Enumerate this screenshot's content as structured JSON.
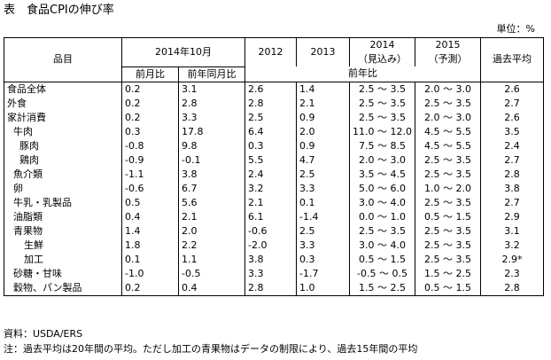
{
  "title": "表　食品CPIの伸び率",
  "unit": "単位：%",
  "headers": {
    "item": "品目",
    "oct2014": "2014年10月",
    "y2012": "2012",
    "y2013": "2013",
    "y2014_line1": "2014",
    "y2014_line2": "（見込み）",
    "y2015_line1": "2015",
    "y2015_line2": "（予測）",
    "avg": "過去平均",
    "mom": "前月比",
    "yoy": "前年同月比",
    "prev_year": "前年比"
  },
  "rows": [
    {
      "name": "食品全体",
      "mom": "0.2",
      "yoy": "3.1",
      "y2012": "2.6",
      "y2013": "1.4",
      "y2014": "2.5 ～ 3.5",
      "y2015": "2.0 ～ 3.0",
      "avg": "2.6"
    },
    {
      "name": "外食",
      "mom": "0.2",
      "yoy": "2.8",
      "y2012": "2.8",
      "y2013": "2.1",
      "y2014": "2.5 ～ 3.5",
      "y2015": "2.5 ～ 3.5",
      "avg": "2.7"
    },
    {
      "name": "家計消費",
      "mom": "0.2",
      "yoy": "3.3",
      "y2012": "2.5",
      "y2013": "0.9",
      "y2014": "2.5 ～ 3.5",
      "y2015": "2.0 ～ 3.0",
      "avg": "2.6"
    },
    {
      "name": "牛肉",
      "mom": "0.3",
      "yoy": "17.8",
      "y2012": "6.4",
      "y2013": "2.0",
      "y2014": "11.0 ～ 12.0",
      "y2015": "4.5 ～ 5.5",
      "avg": "3.5"
    },
    {
      "name": "豚肉",
      "mom": "-0.8",
      "yoy": "9.8",
      "y2012": "0.3",
      "y2013": "0.9",
      "y2014": "7.5 ～ 8.5",
      "y2015": "4.5 ～ 5.5",
      "avg": "2.4"
    },
    {
      "name": "鶏肉",
      "mom": "-0.9",
      "yoy": "-0.1",
      "y2012": "5.5",
      "y2013": "4.7",
      "y2014": "2.0 ～ 3.0",
      "y2015": "2.5 ～ 3.5",
      "avg": "2.7"
    },
    {
      "name": "魚介類",
      "mom": "-1.1",
      "yoy": "3.8",
      "y2012": "2.4",
      "y2013": "2.5",
      "y2014": "3.5 ～ 4.5",
      "y2015": "2.5 ～ 3.5",
      "avg": "2.8"
    },
    {
      "name": "卵",
      "mom": "-0.6",
      "yoy": "6.7",
      "y2012": "3.2",
      "y2013": "3.3",
      "y2014": "5.0 ～ 6.0",
      "y2015": "1.0 ～ 2.0",
      "avg": "3.8"
    },
    {
      "name": "牛乳・乳製品",
      "mom": "0.5",
      "yoy": "5.6",
      "y2012": "2.1",
      "y2013": "0.1",
      "y2014": "3.0 ～ 4.0",
      "y2015": "2.5 ～ 3.5",
      "avg": "2.7"
    },
    {
      "name": "油脂類",
      "mom": "0.4",
      "yoy": "2.1",
      "y2012": "6.1",
      "y2013": "-1.4",
      "y2014": "0.0 ～ 1.0",
      "y2015": "0.5 ～ 1.5",
      "avg": "2.9"
    },
    {
      "name": "青果物",
      "mom": "1.4",
      "yoy": "2.0",
      "y2012": "-0.6",
      "y2013": "2.5",
      "y2014": "2.5 ～ 3.5",
      "y2015": "2.5 ～ 3.5",
      "avg": "3.1"
    },
    {
      "name": "生鮮",
      "mom": "1.8",
      "yoy": "2.2",
      "y2012": "-2.0",
      "y2013": "3.3",
      "y2014": "3.0 ～ 4.0",
      "y2015": "2.5 ～ 3.5",
      "avg": "3.2"
    },
    {
      "name": "加工",
      "mom": "0.1",
      "yoy": "1.1",
      "y2012": "3.8",
      "y2013": "0.3",
      "y2014": "0.5 ～ 1.5",
      "y2015": "2.5 ～ 3.5",
      "avg": "2.9*"
    },
    {
      "name": "砂糖・甘味",
      "mom": "-1.0",
      "yoy": "-0.5",
      "y2012": "3.3",
      "y2013": "-1.7",
      "y2014": "-0.5 ～ 0.5",
      "y2015": "1.5 ～ 2.5",
      "avg": "2.3"
    },
    {
      "name": "穀物、パン製品",
      "mom": "0.2",
      "yoy": "0.4",
      "y2012": "2.8",
      "y2013": "1.0",
      "y2014": "1.5 ～ 2.5",
      "y2015": "0.5 ～ 1.5",
      "avg": "2.8"
    }
  ],
  "source": "資料：USDA/ERS",
  "note": "注：過去平均は20年間の平均。ただし加工の青果物はデータの制限により、過去15年間の平均"
}
